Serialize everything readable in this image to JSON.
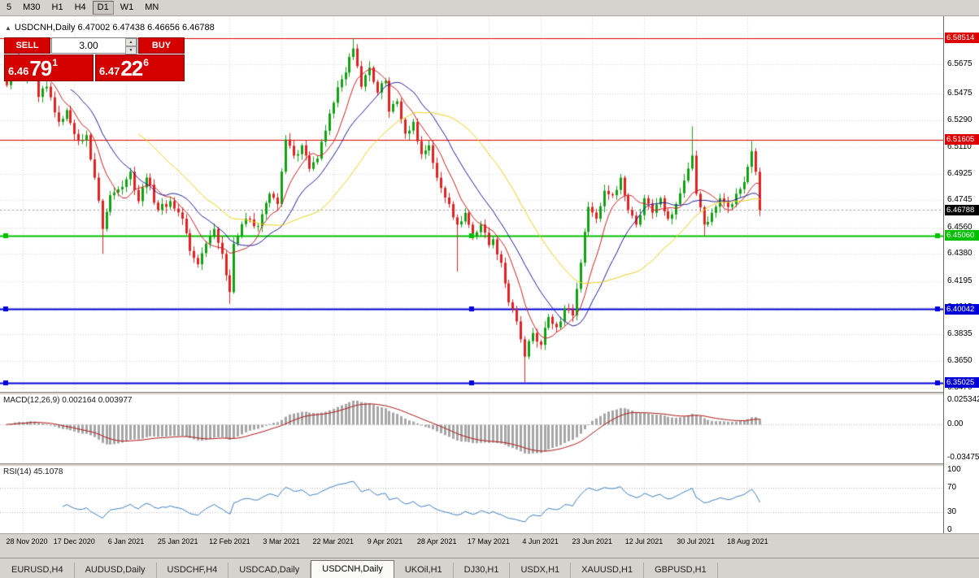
{
  "toolbar": {
    "timeframes": [
      {
        "label": "5"
      },
      {
        "label": "M30"
      },
      {
        "label": "H1"
      },
      {
        "label": "H4"
      },
      {
        "label": "D1",
        "active": true
      },
      {
        "label": "W1"
      },
      {
        "label": "MN"
      }
    ]
  },
  "chart": {
    "collapse_icon": "▲",
    "symbol_line": "USDCNH,Daily 6.47002 6.47438 6.46656 6.46788"
  },
  "trade_panel": {
    "sell_label": "SELL",
    "buy_label": "BUY",
    "volume": "3.00",
    "spin_up_icon": "▲",
    "spin_down_icon": "▼",
    "sell_price": {
      "prefix": "6.46",
      "big": "79",
      "sup": "1"
    },
    "buy_price": {
      "prefix": "6.47",
      "big": "22",
      "sup": "6"
    },
    "panel_color": "#d40000"
  },
  "chart_data": {
    "type": "candlestick",
    "symbol": "USDCNH",
    "timeframe": "Daily",
    "ohlc_display": {
      "open": "6.47002",
      "high": "6.47438",
      "low": "6.46656",
      "close": "6.46788"
    },
    "price_axis": {
      "p_max": 6.6,
      "p_min": 6.344,
      "ticks": [
        "6.5850",
        "6.5675",
        "6.5475",
        "6.5290",
        "6.5110",
        "6.4925",
        "6.4745",
        "6.4560",
        "6.4380",
        "6.4195",
        "6.4015",
        "6.3835",
        "6.3650",
        "6.3470"
      ]
    },
    "current_price": {
      "value": 6.46788,
      "label": "6.46788",
      "color": "#000000"
    },
    "levels": [
      {
        "value": 6.58514,
        "label": "6.58514",
        "color": "#dd0000",
        "width": 1,
        "handles": false
      },
      {
        "value": 6.51605,
        "label": "6.51605",
        "color": "#dd0000",
        "width": 1,
        "handles": false
      },
      {
        "value": 6.4506,
        "label": "6.45060",
        "color": "#00c000",
        "width": 2,
        "handles": true
      },
      {
        "value": 6.40042,
        "label": "6.40042",
        "color": "#0000d8",
        "width": 2,
        "handles": true
      },
      {
        "value": 6.35025,
        "label": "6.35025",
        "color": "#0000d8",
        "width": 2,
        "handles": true
      }
    ],
    "candles": {
      "count": 190,
      "noise": 0.0026,
      "up_color": "#13a113",
      "down_color": "#e02222",
      "close_anchors": [
        [
          0,
          6.553
        ],
        [
          2,
          6.572
        ],
        [
          4,
          6.558
        ],
        [
          6,
          6.57
        ],
        [
          8,
          6.545
        ],
        [
          10,
          6.552
        ],
        [
          13,
          6.528
        ],
        [
          15,
          6.536
        ],
        [
          18,
          6.515
        ],
        [
          20,
          6.519
        ],
        [
          22,
          6.49
        ],
        [
          24,
          6.455
        ],
        [
          26,
          6.478
        ],
        [
          28,
          6.482
        ],
        [
          31,
          6.494
        ],
        [
          33,
          6.474
        ],
        [
          35,
          6.49
        ],
        [
          38,
          6.468
        ],
        [
          41,
          6.474
        ],
        [
          44,
          6.462
        ],
        [
          46,
          6.44
        ],
        [
          48,
          6.431
        ],
        [
          50,
          6.445
        ],
        [
          52,
          6.455
        ],
        [
          54,
          6.438
        ],
        [
          56,
          6.412
        ],
        [
          57,
          6.445
        ],
        [
          60,
          6.462
        ],
        [
          63,
          6.457
        ],
        [
          66,
          6.479
        ],
        [
          68,
          6.472
        ],
        [
          70,
          6.516
        ],
        [
          72,
          6.505
        ],
        [
          74,
          6.512
        ],
        [
          76,
          6.496
        ],
        [
          78,
          6.503
        ],
        [
          80,
          6.522
        ],
        [
          82,
          6.541
        ],
        [
          84,
          6.557
        ],
        [
          87,
          6.578
        ],
        [
          89,
          6.552
        ],
        [
          91,
          6.565
        ],
        [
          93,
          6.548
        ],
        [
          95,
          6.556
        ],
        [
          96,
          6.535
        ],
        [
          98,
          6.542
        ],
        [
          100,
          6.52
        ],
        [
          102,
          6.528
        ],
        [
          104,
          6.506
        ],
        [
          106,
          6.512
        ],
        [
          108,
          6.49
        ],
        [
          109,
          6.483
        ],
        [
          111,
          6.472
        ],
        [
          113,
          6.458
        ],
        [
          115,
          6.466
        ],
        [
          117,
          6.45
        ],
        [
          119,
          6.458
        ],
        [
          121,
          6.444
        ],
        [
          122,
          6.448
        ],
        [
          124,
          6.432
        ],
        [
          126,
          6.405
        ],
        [
          128,
          6.392
        ],
        [
          130,
          6.368
        ],
        [
          132,
          6.384
        ],
        [
          134,
          6.376
        ],
        [
          136,
          6.395
        ],
        [
          138,
          6.388
        ],
        [
          140,
          6.401
        ],
        [
          142,
          6.396
        ],
        [
          144,
          6.432
        ],
        [
          146,
          6.47
        ],
        [
          148,
          6.462
        ],
        [
          150,
          6.481
        ],
        [
          152,
          6.478
        ],
        [
          154,
          6.49
        ],
        [
          156,
          6.468
        ],
        [
          158,
          6.458
        ],
        [
          160,
          6.476
        ],
        [
          162,
          6.466
        ],
        [
          164,
          6.476
        ],
        [
          166,
          6.462
        ],
        [
          168,
          6.472
        ],
        [
          170,
          6.488
        ],
        [
          172,
          6.505
        ],
        [
          173,
          6.479
        ],
        [
          175,
          6.458
        ],
        [
          177,
          6.466
        ],
        [
          179,
          6.476
        ],
        [
          181,
          6.47
        ],
        [
          183,
          6.479
        ],
        [
          185,
          6.487
        ],
        [
          187,
          6.508
        ],
        [
          188,
          6.494
        ],
        [
          189,
          6.46788
        ]
      ],
      "wick_overrides": {
        "24": {
          "low": 6.438
        },
        "56": {
          "low": 6.404
        },
        "87": {
          "high": 6.5852
        },
        "113": {
          "low": 6.426
        },
        "130": {
          "low": 6.3505
        },
        "172": {
          "high": 6.525
        },
        "175": {
          "low": 6.4505
        },
        "187": {
          "high": 6.515
        }
      }
    },
    "moving_averages": [
      {
        "period": 8,
        "color": "#cc2222"
      },
      {
        "period": 17,
        "color": "#20209a"
      },
      {
        "period": 34,
        "color": "#ecd11c"
      }
    ],
    "time_axis": {
      "start_idx": 4,
      "every": 13,
      "labels": [
        "28 Nov 2020",
        "17 Dec 2020",
        "6 Jan 2021",
        "25 Jan 2021",
        "12 Feb 2021",
        "3 Mar 2021",
        "22 Mar 2021",
        "9 Apr 2021",
        "28 Apr 2021",
        "17 May 2021",
        "4 Jun 2021",
        "23 Jun 2021",
        "12 Jul 2021",
        "30 Jul 2021",
        "18 Aug 2021"
      ]
    },
    "macd": {
      "label": "MACD(12,26,9) 0.002164 0.003977",
      "fast": 12,
      "slow": 26,
      "signal": 9,
      "v_max": 0.0306,
      "v_min": -0.0408,
      "axis_labels": [
        {
          "v": 0.025342,
          "t": "0.025342"
        },
        {
          "v": 0,
          "t": "0.00"
        },
        {
          "v": -0.03475,
          "t": "-0.03475"
        }
      ],
      "hist_color": "#a6a6a6",
      "signal_color": "#b01414"
    },
    "rsi": {
      "label": "RSI(14) 45.1078",
      "period": 14,
      "v_max": 105,
      "v_min": -5,
      "levels": [
        70,
        30
      ],
      "axis_labels": [
        {
          "v": 100,
          "t": "100"
        },
        {
          "v": 70,
          "t": "70"
        },
        {
          "v": 30,
          "t": "30"
        },
        {
          "v": 0,
          "t": "0"
        }
      ],
      "line_color": "#3f7fbf"
    }
  },
  "tabs": {
    "active_index": 4,
    "items": [
      "EURUSD,H4",
      "AUDUSD,Daily",
      "USDCHF,H4",
      "USDCAD,Daily",
      "USDCNH,Daily",
      "UKOil,H1",
      "DJ30,H1",
      "USDX,H1",
      "XAUUSD,H1",
      "GBPUSD,H1"
    ]
  }
}
